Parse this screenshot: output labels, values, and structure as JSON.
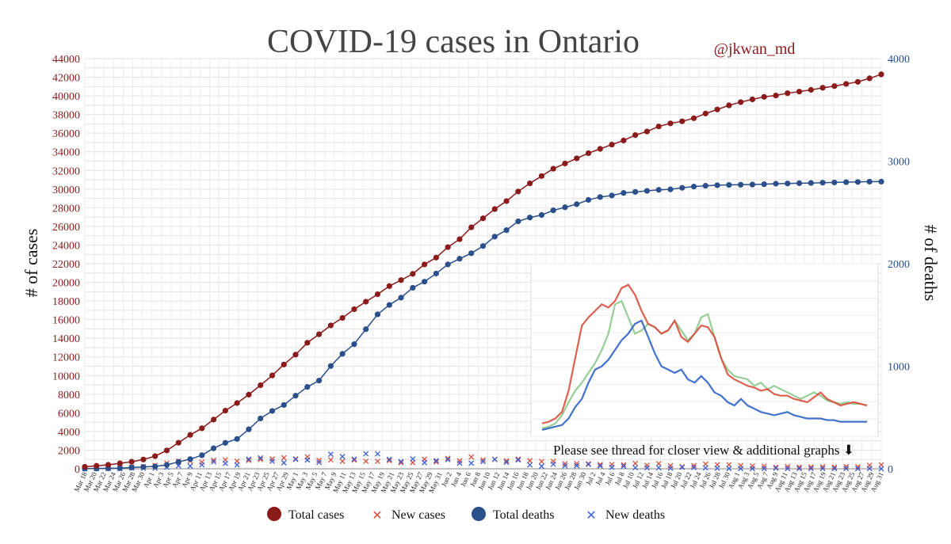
{
  "chart_data": {
    "type": "line",
    "title": "COVID-19 cases in Ontario",
    "handle": "@jkwan_md",
    "ylabel_left": "# of cases",
    "ylabel_right": "# of deaths",
    "ylim_left": [
      0,
      44000
    ],
    "ylim_right": [
      0,
      4000
    ],
    "left_ticks": [
      "0",
      "2000",
      "4000",
      "6000",
      "8000",
      "10000",
      "12000",
      "14000",
      "16000",
      "18000",
      "20000",
      "22000",
      "24000",
      "26000",
      "28000",
      "30000",
      "32000",
      "34000",
      "36000",
      "38000",
      "40000",
      "42000",
      "44000"
    ],
    "right_ticks": [
      "0",
      "1000",
      "2000",
      "3000",
      "4000"
    ],
    "x_labels": [
      "Mar 18",
      "Mar 20",
      "Mar 22",
      "Mar 24",
      "Mar 26",
      "Mar 28",
      "Mar 30",
      "Apr 1",
      "Apr 3",
      "Apr 5",
      "Apr 7",
      "Apr 9",
      "Apr 11",
      "Apr 13",
      "Apr 15",
      "Apr 17",
      "Apr 19",
      "Apr 21",
      "Apr 23",
      "Apr 25",
      "Apr 27",
      "Apr 29",
      "May 1",
      "May 3",
      "May 5",
      "May 7",
      "May 9",
      "May 11",
      "May 13",
      "May 15",
      "May 17",
      "May 19",
      "May 21",
      "May 23",
      "May 25",
      "May 27",
      "May 29",
      "May 31",
      "Jun 2",
      "Jun 4",
      "Jun 6",
      "Jun 8",
      "Jun 10",
      "Jun 12",
      "Jun 14",
      "Jun 16",
      "Jun 18",
      "Jun 20",
      "Jun 22",
      "Jun 24",
      "Jun 26",
      "Jun 28",
      "Jun 30",
      "Jul 2",
      "Jul 4",
      "Jul 6",
      "Jul 8",
      "Jul 10",
      "Jul 12",
      "Jul 14",
      "Jul 16",
      "Jul 18",
      "Jul 20",
      "Jul 22",
      "Jul 24",
      "Jul 26",
      "Jul 28",
      "Jul 30",
      "Aug 1",
      "Aug 3",
      "Aug 5",
      "Aug 7",
      "Aug 9",
      "Aug 11",
      "Aug 13",
      "Aug 15",
      "Aug 17",
      "Aug 19",
      "Aug 21",
      "Aug 23",
      "Aug 25",
      "Aug 27",
      "Aug 29",
      "Aug 31"
    ],
    "series": [
      {
        "name": "Total cases",
        "axis": "left",
        "color": "#8b1a1a",
        "values": [
          214,
          318,
          425,
          587,
          751,
          993,
          1355,
          1966,
          2793,
          3630,
          4347,
          5276,
          6237,
          7049,
          7953,
          8961,
          10010,
          11184,
          12245,
          13519,
          14432,
          15381,
          16187,
          17119,
          17923,
          18722,
          19598,
          20238,
          20907,
          21922,
          22653,
          23774,
          24628,
          25903,
          26866,
          27859,
          28709,
          29747,
          30617,
          31400,
          32189,
          32744,
          33301,
          33853,
          34316,
          34779,
          35217,
          35794,
          36178,
          36723,
          37052,
          37274,
          37604,
          38107,
          38543,
          38986,
          39333,
          39628,
          39897,
          40046,
          40289,
          40459,
          40646,
          40870,
          41048,
          41287,
          41507,
          41885,
          42309
        ]
      },
      {
        "name": "Total deaths",
        "axis": "left_scaled",
        "color": "#2a4f8a",
        "values": [
          2,
          3,
          5,
          6,
          13,
          18,
          23,
          38,
          67,
          94,
          132,
          200,
          253,
          291,
          385,
          491,
          564,
          622,
          713,
          798,
          860,
          1002,
          1121,
          1215,
          1361,
          1506,
          1598,
          1669,
          1765,
          1825,
          1904,
          1993,
          2048,
          2102,
          2172,
          2264,
          2327,
          2413,
          2450,
          2475,
          2520,
          2550,
          2580,
          2622,
          2650,
          2665,
          2690,
          2700,
          2710,
          2720,
          2725,
          2740,
          2752,
          2760,
          2765,
          2768,
          2770,
          2772,
          2775,
          2780,
          2782,
          2785,
          2787,
          2790,
          2792,
          2795,
          2797,
          2800,
          2800
        ]
      },
      {
        "name": "New cases",
        "axis": "left",
        "color": "#d94f3d",
        "values": [
          20,
          100,
          110,
          160,
          170,
          240,
          360,
          610,
          830,
          840,
          720,
          930,
          960,
          810,
          900,
          1010,
          1050,
          1170,
          1060,
          1270,
          910,
          950,
          800,
          930,
          800,
          800,
          880,
          640,
          670,
          1020,
          730,
          1120,
          850,
          1270,
          960,
          990,
          850,
          1040,
          870,
          780,
          790,
          550,
          560,
          550,
          460,
          460,
          440,
          580,
          380,
          550,
          330,
          220,
          330,
          500,
          440,
          440,
          350,
          300,
          270,
          150,
          240,
          170,
          190,
          220,
          180,
          240,
          220,
          380,
          420
        ]
      },
      {
        "name": "New deaths",
        "axis": "left_scaled",
        "color": "#3a5fd8",
        "values": [
          1,
          1,
          2,
          1,
          7,
          5,
          5,
          15,
          29,
          27,
          38,
          68,
          53,
          38,
          94,
          106,
          73,
          58,
          91,
          85,
          62,
          142,
          119,
          94,
          146,
          145,
          92,
          71,
          96,
          60,
          79,
          89,
          55,
          54,
          70,
          92,
          63,
          86,
          37,
          25,
          45,
          30,
          30,
          42,
          28,
          15,
          25,
          10,
          10,
          10,
          5,
          15,
          12,
          8,
          5,
          3,
          2,
          2,
          3,
          5,
          2,
          3,
          2,
          3,
          2,
          3,
          2,
          3,
          0
        ]
      }
    ],
    "legend": [
      "Total cases",
      "New cases",
      "Total deaths",
      "New deaths"
    ],
    "legend_position": "bottom-center",
    "inset_note": "Please see thread for closer view & additional graphs ⬇"
  }
}
